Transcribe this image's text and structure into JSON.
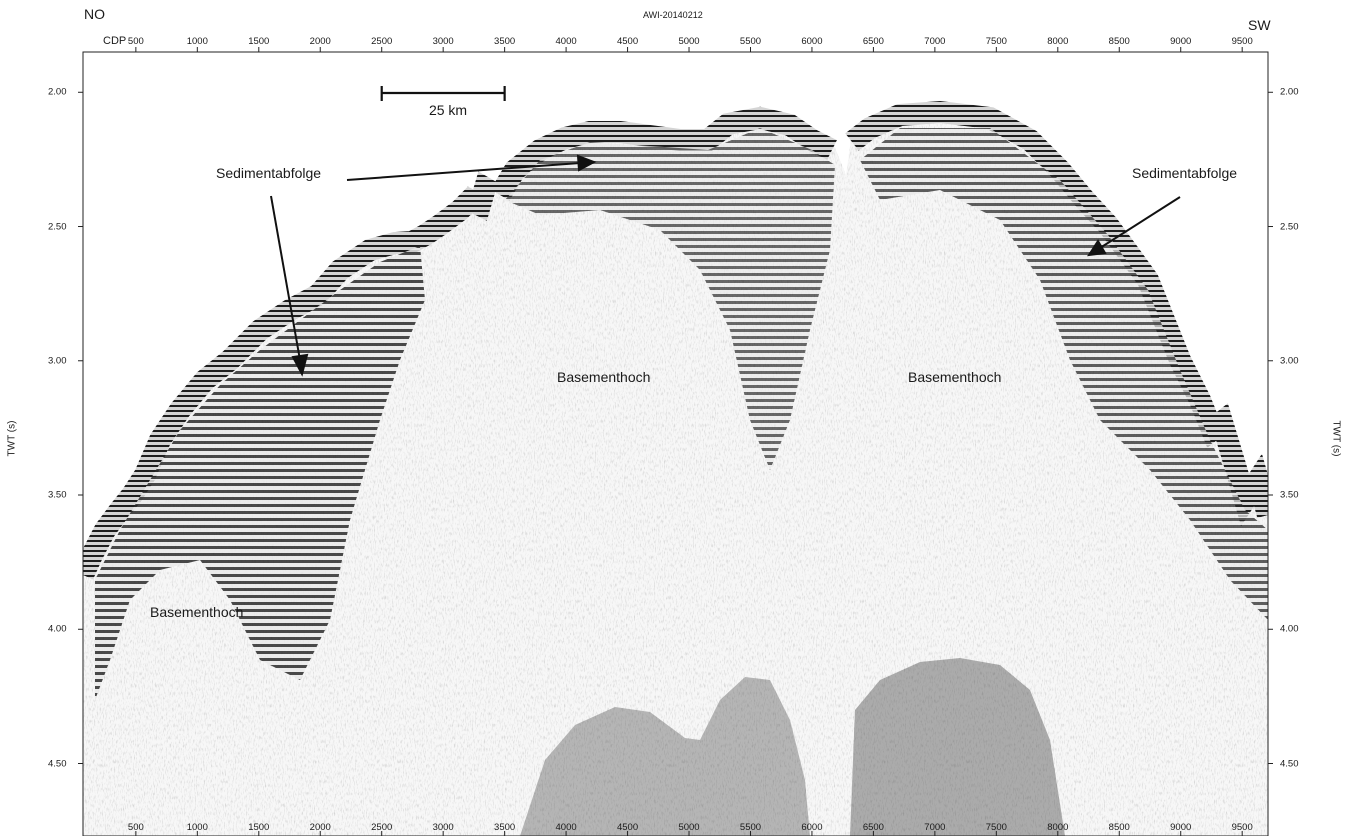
{
  "header": {
    "left_direction": "NO",
    "right_direction": "SW",
    "profile_id": "AWI-20140212",
    "cdp_label": "CDP"
  },
  "axes": {
    "x_ticks": [
      "500",
      "1000",
      "1500",
      "2000",
      "2500",
      "3000",
      "3500",
      "4000",
      "4500",
      "5000",
      "5500",
      "6000",
      "6500",
      "7000",
      "7500",
      "8000",
      "8500",
      "9000",
      "9500"
    ],
    "y_ticks": [
      "2.00",
      "2.50",
      "3.00",
      "3.50",
      "4.00",
      "4.50"
    ],
    "y_title_left": "TWT (s)",
    "y_title_right": "TWT (s)",
    "x_range": [
      70,
      9710
    ],
    "y_range": [
      1.85,
      4.77
    ]
  },
  "scale_bar": {
    "label": "25 km",
    "from_cdp": 2500,
    "to_cdp": 3500
  },
  "annotations": {
    "sed_left": "Sedimentabfolge",
    "sed_right": "Sedimentabfolge",
    "basement_left": "Basementhoch",
    "basement_center": "Basementhoch",
    "basement_right": "Basementhoch"
  },
  "colors": {
    "seismic_dark": "#1a1a1a",
    "seismic_light": "#f6f6f6",
    "frame": "#222222"
  }
}
